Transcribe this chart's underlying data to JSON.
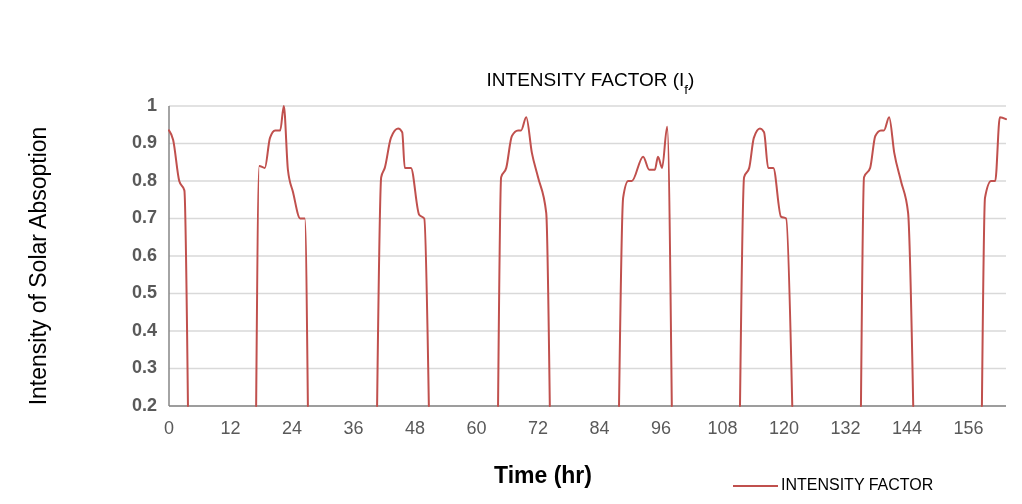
{
  "chart_data": {
    "type": "line",
    "title": "INTENSITY FACTOR (I$_{f}$)",
    "xlabel": "Time (hr)",
    "ylabel": "Intensity of Solar Absoption",
    "x": [
      0,
      0.8,
      2,
      3,
      3.7,
      4,
      17,
      17.6,
      18.7,
      19.7,
      20.7,
      21.7,
      22.4,
      23.2,
      24.2,
      25.6,
      26.5,
      27.1,
      28,
      40.6,
      41.4,
      42.1,
      43.3,
      44.7,
      45.5,
      46,
      47.2,
      48.8,
      49.8,
      50.7,
      52,
      64.2,
      64.8,
      65.8,
      66.9,
      68.1,
      68.7,
      69.7,
      70.8,
      72,
      73.6,
      74.3,
      76,
      87.8,
      88.6,
      89.6,
      90.3,
      92.5,
      93.7,
      94.8,
      95.4,
      96.2,
      97.2,
      98.1,
      100,
      111.4,
      112.2,
      113.2,
      114.1,
      115.3,
      116.1,
      116.9,
      117.9,
      119.4,
      120.4,
      121.6,
      123,
      135,
      135.6,
      136.8,
      137.8,
      138.9,
      139.5,
      140.5,
      141.5,
      142.8,
      144.2,
      145.2,
      147,
      158.6,
      159.2,
      160.4,
      161.2,
      162.1,
      163.3
    ],
    "series": [
      {
        "name": "INTENSITY FACTOR",
        "color": "#c0504d",
        "values": [
          0.935,
          0.91,
          0.8,
          0.775,
          0.2,
          null,
          0.2,
          0.84,
          0.835,
          0.915,
          0.935,
          0.935,
          1.0,
          0.83,
          0.77,
          0.7,
          0.7,
          0.2,
          null,
          0.2,
          0.81,
          0.835,
          0.915,
          0.94,
          0.93,
          0.835,
          0.835,
          0.71,
          0.7,
          0.2,
          null,
          0.2,
          0.81,
          0.835,
          0.92,
          0.935,
          0.935,
          0.97,
          0.875,
          0.81,
          0.715,
          0.2,
          null,
          0.2,
          0.755,
          0.8,
          0.8,
          0.865,
          0.83,
          0.83,
          0.865,
          0.835,
          0.945,
          0.2,
          null,
          0.2,
          0.81,
          0.835,
          0.915,
          0.94,
          0.93,
          0.835,
          0.835,
          0.705,
          0.7,
          0.2,
          null,
          0.2,
          0.81,
          0.835,
          0.92,
          0.935,
          0.935,
          0.97,
          0.875,
          0.8,
          0.715,
          0.2,
          null,
          0.2,
          0.755,
          0.8,
          0.8,
          0.97,
          0.965
        ]
      }
    ],
    "xlim": [
      0,
      163.3
    ],
    "xticks": [
      0,
      12,
      24,
      36,
      48,
      60,
      72,
      84,
      96,
      108,
      120,
      132,
      144,
      156
    ],
    "ylim": [
      0.2,
      1
    ],
    "yticks": [
      0.2,
      0.3,
      0.4,
      0.5,
      0.6,
      0.7,
      0.8,
      0.9,
      1
    ],
    "grid": "y",
    "legend": "bottom right",
    "marker": "none",
    "line_style": "solid"
  }
}
